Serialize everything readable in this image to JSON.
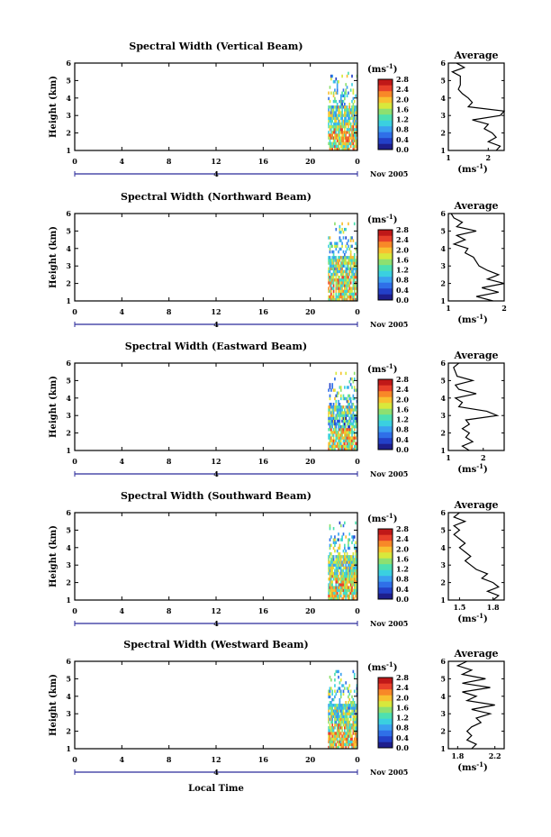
{
  "chart_data": [
    {
      "type": "heatmap",
      "title": "Spectral Width (Vertical Beam)",
      "ylabel": "Height (km)",
      "x_ticks": [
        "0",
        "4",
        "8",
        "12",
        "16",
        "20",
        "0"
      ],
      "y_ticks": [
        "1",
        "2",
        "3",
        "4",
        "5",
        "6"
      ],
      "ylim": [
        1,
        6
      ],
      "date_day": "4",
      "date_label": "Nov 2005",
      "colorbar_unit": "(ms",
      "colorbar_ticks": [
        "0.0",
        "0.4",
        "0.8",
        "1.2",
        "1.6",
        "2.0",
        "2.4",
        "2.8"
      ],
      "profile": {
        "title": "Average",
        "y_ticks": [
          "1",
          "2",
          "3",
          "4",
          "5",
          "6"
        ],
        "x_ticks": [
          "1",
          "2"
        ],
        "xlim": [
          1,
          2.4
        ],
        "xlabel": "(ms",
        "heights": [
          1.0,
          1.25,
          1.5,
          1.75,
          2.0,
          2.25,
          2.5,
          2.75,
          3.0,
          3.25,
          3.5,
          3.75,
          4.0,
          4.25,
          4.5,
          4.75,
          5.0,
          5.25,
          5.5,
          5.75,
          6.0
        ],
        "values": [
          2.2,
          2.3,
          2.0,
          2.2,
          2.1,
          1.9,
          2.0,
          1.6,
          2.3,
          2.4,
          1.5,
          1.6,
          1.5,
          1.35,
          1.25,
          1.3,
          1.3,
          1.3,
          1.1,
          1.4,
          1.2
        ]
      }
    },
    {
      "type": "heatmap",
      "title": "Spectral Width (Northward Beam)",
      "ylabel": "Height (km)",
      "x_ticks": [
        "0",
        "4",
        "8",
        "12",
        "16",
        "20",
        "0"
      ],
      "y_ticks": [
        "1",
        "2",
        "3",
        "4",
        "5",
        "6"
      ],
      "ylim": [
        1,
        6
      ],
      "date_day": "4",
      "date_label": "Nov 2005",
      "colorbar_unit": "(ms",
      "colorbar_ticks": [
        "0.0",
        "0.4",
        "0.8",
        "1.2",
        "1.6",
        "2.0",
        "2.4",
        "2.8"
      ],
      "profile": {
        "title": "Average",
        "y_ticks": [
          "1",
          "2",
          "3",
          "4",
          "5",
          "6"
        ],
        "x_ticks": [
          "1",
          "2"
        ],
        "xlim": [
          1,
          2
        ],
        "xlabel": "(ms",
        "heights": [
          1.0,
          1.25,
          1.5,
          1.75,
          2.0,
          2.25,
          2.5,
          2.75,
          3.0,
          3.25,
          3.5,
          3.75,
          4.0,
          4.25,
          4.5,
          4.75,
          5.0,
          5.25,
          5.5,
          5.75,
          6.0
        ],
        "values": [
          1.8,
          1.5,
          1.9,
          1.6,
          2.0,
          1.7,
          1.9,
          1.7,
          1.55,
          1.5,
          1.45,
          1.3,
          1.35,
          1.1,
          1.3,
          1.15,
          1.5,
          1.15,
          1.25,
          1.1,
          1.05
        ]
      }
    },
    {
      "type": "heatmap",
      "title": "Spectral Width (Eastward Beam)",
      "ylabel": "Height (km)",
      "x_ticks": [
        "0",
        "4",
        "8",
        "12",
        "16",
        "20",
        "0"
      ],
      "y_ticks": [
        "1",
        "2",
        "3",
        "4",
        "5",
        "6"
      ],
      "ylim": [
        1,
        6
      ],
      "date_day": "4",
      "date_label": "Nov 2005",
      "colorbar_unit": "(ms",
      "colorbar_ticks": [
        "0.0",
        "0.4",
        "0.8",
        "1.2",
        "1.6",
        "2.0",
        "2.4",
        "2.8"
      ],
      "profile": {
        "title": "Average",
        "y_ticks": [
          "1",
          "2",
          "3",
          "4",
          "5",
          "6"
        ],
        "x_ticks": [
          "1",
          "2"
        ],
        "xlim": [
          1,
          2.6
        ],
        "xlabel": "(ms",
        "heights": [
          1.0,
          1.25,
          1.5,
          1.75,
          2.0,
          2.25,
          2.5,
          2.75,
          3.0,
          3.25,
          3.5,
          3.75,
          4.0,
          4.25,
          4.5,
          4.75,
          5.0,
          5.25,
          5.5,
          5.75,
          6.0
        ],
        "values": [
          1.6,
          1.4,
          1.7,
          1.5,
          1.6,
          1.4,
          1.6,
          1.5,
          2.4,
          2.1,
          1.3,
          1.4,
          1.2,
          1.8,
          1.3,
          1.2,
          1.7,
          1.25,
          1.2,
          1.15,
          1.3
        ]
      }
    },
    {
      "type": "heatmap",
      "title": "Spectral Width (Southward Beam)",
      "ylabel": "Height (km)",
      "x_ticks": [
        "0",
        "4",
        "8",
        "12",
        "16",
        "20",
        "0"
      ],
      "y_ticks": [
        "1",
        "2",
        "3",
        "4",
        "5",
        "6"
      ],
      "ylim": [
        1,
        6
      ],
      "date_day": "4",
      "date_label": "Nov 2005",
      "colorbar_unit": "(ms",
      "colorbar_ticks": [
        "0.0",
        "0.4",
        "0.8",
        "1.2",
        "1.6",
        "2.0",
        "2.4",
        "2.8"
      ],
      "profile": {
        "title": "Average",
        "y_ticks": [
          "1",
          "2",
          "3",
          "4",
          "5",
          "6"
        ],
        "x_ticks": [
          "1.5",
          "1.8"
        ],
        "xlim": [
          1.4,
          1.9
        ],
        "xlabel": "(ms",
        "heights": [
          1.0,
          1.25,
          1.5,
          1.75,
          2.0,
          2.25,
          2.5,
          2.75,
          3.0,
          3.25,
          3.5,
          3.75,
          4.0,
          4.25,
          4.5,
          4.75,
          5.0,
          5.25,
          5.5,
          5.75,
          6.0
        ],
        "values": [
          1.8,
          1.85,
          1.75,
          1.85,
          1.8,
          1.7,
          1.75,
          1.65,
          1.6,
          1.55,
          1.6,
          1.55,
          1.5,
          1.55,
          1.5,
          1.45,
          1.5,
          1.45,
          1.55,
          1.45,
          1.5
        ]
      }
    },
    {
      "type": "heatmap",
      "title": "Spectral Width (Westward Beam)",
      "ylabel": "Height (km)",
      "x_ticks": [
        "0",
        "4",
        "8",
        "12",
        "16",
        "20",
        "0"
      ],
      "y_ticks": [
        "1",
        "2",
        "3",
        "4",
        "5",
        "6"
      ],
      "ylim": [
        1,
        6
      ],
      "date_day": "4",
      "date_label": "Nov 2005",
      "colorbar_unit": "(ms",
      "colorbar_ticks": [
        "0.0",
        "0.4",
        "0.8",
        "1.2",
        "1.6",
        "2.0",
        "2.4",
        "2.8"
      ],
      "profile": {
        "title": "Average",
        "y_ticks": [
          "1",
          "2",
          "3",
          "4",
          "5",
          "6"
        ],
        "x_ticks": [
          "1.8",
          "2.2"
        ],
        "xlim": [
          1.7,
          2.3
        ],
        "xlabel": "(ms",
        "heights": [
          1.0,
          1.25,
          1.5,
          1.75,
          2.0,
          2.25,
          2.5,
          2.75,
          3.0,
          3.25,
          3.5,
          3.75,
          4.0,
          4.25,
          4.5,
          4.75,
          5.0,
          5.25,
          5.5,
          5.75,
          6.0
        ],
        "values": [
          1.95,
          2.0,
          1.9,
          1.95,
          1.9,
          1.95,
          2.05,
          2.0,
          2.15,
          1.95,
          2.2,
          1.9,
          2.0,
          1.85,
          2.15,
          1.85,
          2.1,
          1.85,
          1.95,
          1.8,
          1.9
        ]
      }
    }
  ],
  "xlabel": "Local Time"
}
